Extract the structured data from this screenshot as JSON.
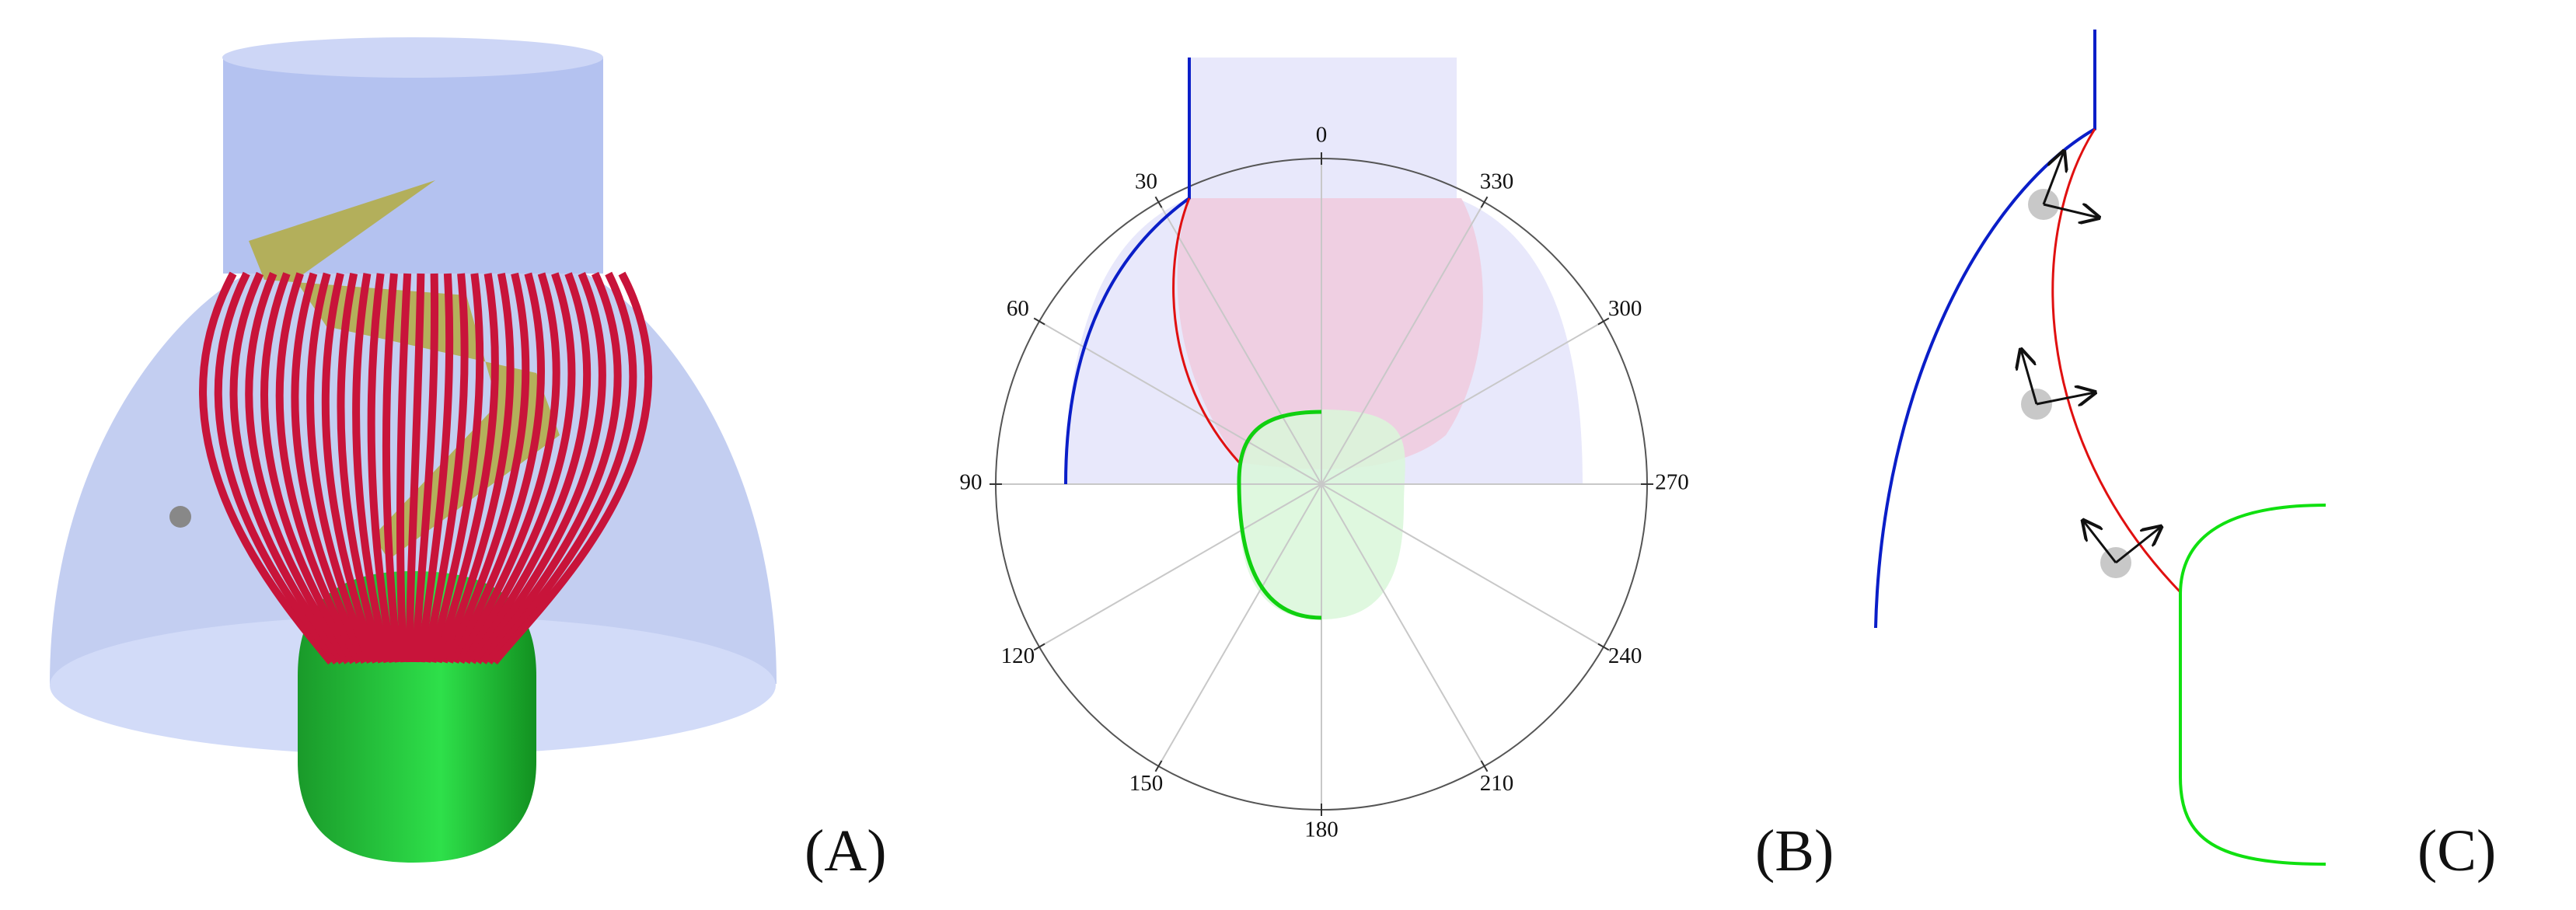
{
  "panels": [
    {
      "label": "(A)"
    },
    {
      "label": "(B)"
    },
    {
      "label": "(C)"
    }
  ],
  "polar": {
    "angle_ticks": [
      0,
      30,
      60,
      90,
      120,
      150,
      180,
      210,
      240,
      270,
      300,
      330
    ]
  }
}
